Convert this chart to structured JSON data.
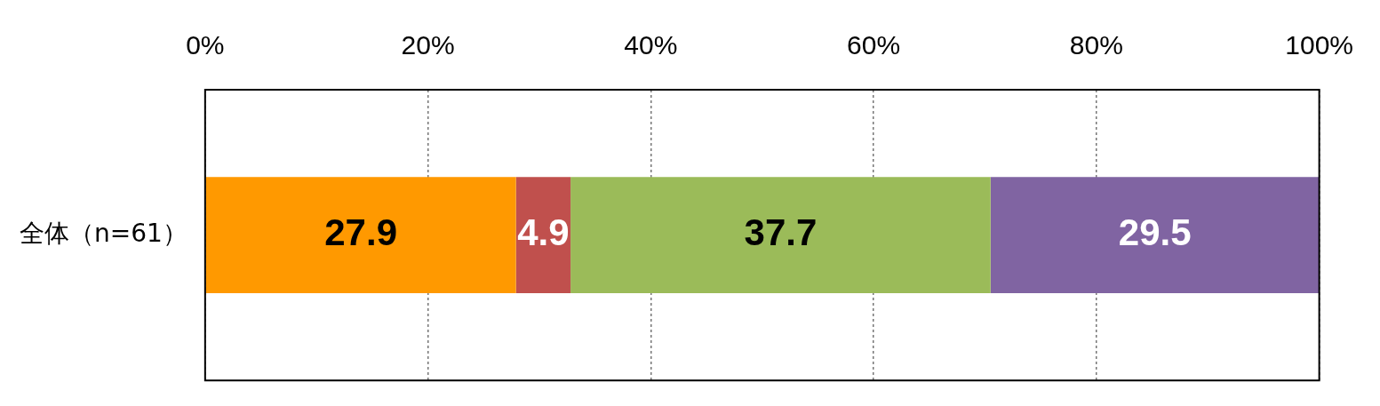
{
  "chart_data": {
    "type": "bar",
    "orientation": "horizontal",
    "stacked": true,
    "categories": [
      "全体（n=61）"
    ],
    "series": [
      {
        "color": "#ff9900",
        "values": [
          27.9
        ]
      },
      {
        "color": "#c0504d",
        "values": [
          4.9
        ]
      },
      {
        "color": "#9bbb59",
        "values": [
          37.7
        ]
      },
      {
        "color": "#8064a2",
        "values": [
          29.5
        ]
      }
    ],
    "xlim": [
      0,
      100
    ],
    "xticks": [
      {
        "value": 0,
        "label": "0%"
      },
      {
        "value": 20,
        "label": "20%"
      },
      {
        "value": 40,
        "label": "40%"
      },
      {
        "value": 60,
        "label": "60%"
      },
      {
        "value": 80,
        "label": "80%"
      },
      {
        "value": 100,
        "label": "100%"
      }
    ],
    "grid": "x",
    "legend": false,
    "data_labels": true
  }
}
